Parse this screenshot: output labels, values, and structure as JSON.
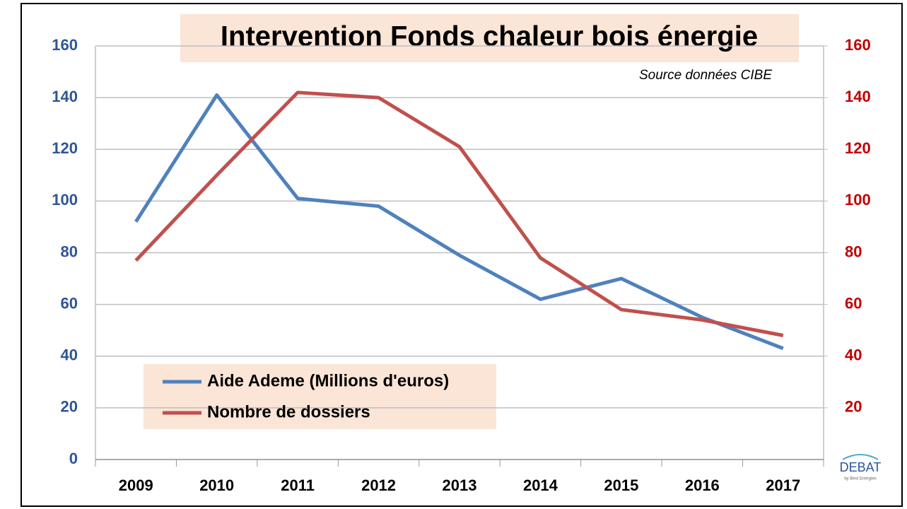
{
  "chart_data": {
    "type": "line",
    "title": "Intervention Fonds chaleur bois énergie",
    "source": "Source données CIBE",
    "logo": "DEBAT",
    "logo_sub": "by Best Energies",
    "categories": [
      "2009",
      "2010",
      "2011",
      "2012",
      "2013",
      "2014",
      "2015",
      "2016",
      "2017"
    ],
    "series": [
      {
        "name": "Aide Ademe (Millions d'euros)",
        "color": "#4f81bd",
        "values": [
          92,
          141,
          101,
          98,
          79,
          62,
          70,
          55,
          43
        ]
      },
      {
        "name": "Nombre de dossiers",
        "color": "#c0504d",
        "axis": "y2",
        "values": [
          77,
          110,
          142,
          140,
          121,
          78,
          58,
          54,
          48
        ]
      }
    ],
    "ylim": [
      0,
      160
    ],
    "yticks": [
      0,
      20,
      40,
      60,
      80,
      100,
      120,
      140,
      160
    ],
    "y2lim": [
      0,
      160
    ],
    "y2ticks": [
      20,
      40,
      60,
      80,
      100,
      120,
      140,
      160
    ],
    "grid": true,
    "legend": "lower left",
    "ytick_color": "#2e5597",
    "y2tick_color": "#c00000"
  }
}
